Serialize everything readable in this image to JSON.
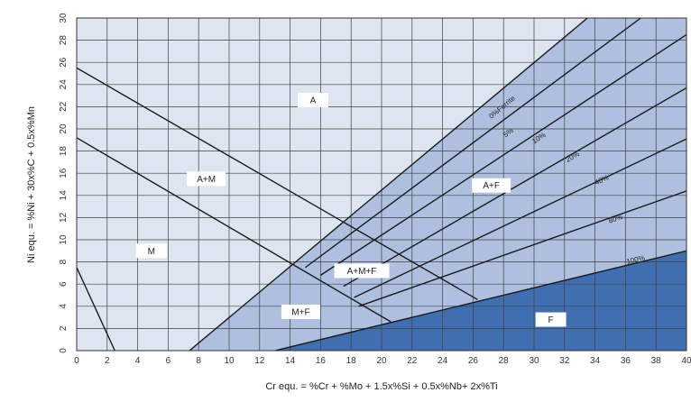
{
  "chart_data": {
    "type": "line",
    "title": "",
    "xlabel": "Cr equ. = %Cr + %Mo + 1.5x%Si + 0.5x%Nb+ 2x%Ti",
    "ylabel": "Ni equ. = %Ni + 30x%C + 0.5x%Mn",
    "xlim": [
      0,
      40
    ],
    "ylim": [
      0,
      30
    ],
    "grid": true,
    "x_ticks": [
      "0",
      "2",
      "4",
      "6",
      "8",
      "10",
      "12",
      "14",
      "16",
      "18",
      "20",
      "22",
      "24",
      "26",
      "28",
      "30",
      "32",
      "34",
      "36",
      "38",
      "40"
    ],
    "y_ticks": [
      "0",
      "2",
      "4",
      "6",
      "8",
      "10",
      "12",
      "14",
      "16",
      "18",
      "20",
      "22",
      "24",
      "26",
      "28",
      "30"
    ],
    "colors": {
      "austenite_region": "#dde6f0",
      "ferrite_austenite_region": "#aebfdf",
      "ferrite_region": "#3f6eb1",
      "grid": "#404040",
      "line": "#1a1a1a"
    },
    "regions": [
      {
        "label": "A",
        "x": 15.5,
        "y": 22.6
      },
      {
        "label": "A+M",
        "x": 8.5,
        "y": 15.5
      },
      {
        "label": "M",
        "x": 4.9,
        "y": 9.0
      },
      {
        "label": "A+M+F",
        "x": 18.7,
        "y": 7.2
      },
      {
        "label": "M+F",
        "x": 14.7,
        "y": 3.5
      },
      {
        "label": "A+F",
        "x": 27.2,
        "y": 14.9
      },
      {
        "label": "F",
        "x": 31.1,
        "y": 2.8
      }
    ],
    "series": [
      {
        "name": "0%Ferrite",
        "label_pos": [
          28.0,
          21.8
        ],
        "points": [
          [
            7.4,
            0
          ],
          [
            33.5,
            30
          ]
        ]
      },
      {
        "name": "5%",
        "label_pos": [
          28.4,
          19.5
        ],
        "points": [
          [
            15.0,
            7.5
          ],
          [
            37.0,
            30
          ]
        ]
      },
      {
        "name": "10%",
        "label_pos": [
          30.4,
          19.0
        ],
        "points": [
          [
            16.0,
            6.8
          ],
          [
            40.0,
            28.5
          ]
        ]
      },
      {
        "name": "20%",
        "label_pos": [
          32.6,
          17.3
        ],
        "points": [
          [
            17.5,
            5.8
          ],
          [
            40.0,
            23.7
          ]
        ]
      },
      {
        "name": "40%",
        "label_pos": [
          34.5,
          15.2
        ],
        "points": [
          [
            18.2,
            4.8
          ],
          [
            40.0,
            19.1
          ]
        ]
      },
      {
        "name": "80%",
        "label_pos": [
          35.4,
          11.7
        ],
        "points": [
          [
            18.5,
            4.0
          ],
          [
            40.0,
            14.4
          ]
        ]
      },
      {
        "name": "100%",
        "label_pos": [
          36.7,
          8.0
        ],
        "points": [
          [
            13.0,
            0
          ],
          [
            40.0,
            9.0
          ]
        ]
      },
      {
        "name": "",
        "points": [
          [
            0,
            25.5
          ],
          [
            26.3,
            4.6
          ]
        ]
      },
      {
        "name": "",
        "points": [
          [
            0,
            19.2
          ],
          [
            20.6,
            2.6
          ]
        ]
      },
      {
        "name": "",
        "points": [
          [
            0,
            7.5
          ],
          [
            2.5,
            0
          ]
        ]
      }
    ]
  }
}
